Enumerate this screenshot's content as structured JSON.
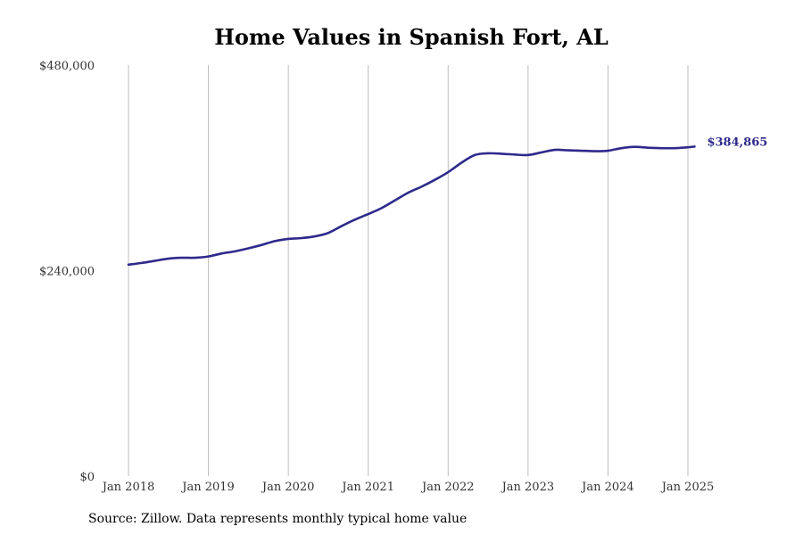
{
  "chart_data": {
    "type": "line",
    "title": "Home Values in Spanish Fort, AL",
    "xlabel": "",
    "ylabel": "",
    "ylim": [
      0,
      480000
    ],
    "xlim": [
      "2018-01",
      "2025-02"
    ],
    "grid": "vertical",
    "y_ticks": [
      {
        "value": 0,
        "label": "$0"
      },
      {
        "value": 240000,
        "label": "$240,000"
      },
      {
        "value": 480000,
        "label": "$480,000"
      }
    ],
    "x_ticks": [
      {
        "value": "2018-01",
        "label": "Jan 2018"
      },
      {
        "value": "2019-01",
        "label": "Jan 2019"
      },
      {
        "value": "2020-01",
        "label": "Jan 2020"
      },
      {
        "value": "2021-01",
        "label": "Jan 2021"
      },
      {
        "value": "2022-01",
        "label": "Jan 2022"
      },
      {
        "value": "2023-01",
        "label": "Jan 2023"
      },
      {
        "value": "2024-01",
        "label": "Jan 2024"
      },
      {
        "value": "2025-01",
        "label": "Jan 2025"
      }
    ],
    "series": [
      {
        "color": "#2e2a8c",
        "points": [
          [
            "2018-01",
            247000
          ],
          [
            "2018-03",
            249000
          ],
          [
            "2018-05",
            251500
          ],
          [
            "2018-07",
            254000
          ],
          [
            "2018-09",
            255000
          ],
          [
            "2018-11",
            255000
          ],
          [
            "2019-01",
            256500
          ],
          [
            "2019-03",
            260000
          ],
          [
            "2019-05",
            262500
          ],
          [
            "2019-07",
            266000
          ],
          [
            "2019-09",
            270000
          ],
          [
            "2019-11",
            274500
          ],
          [
            "2020-01",
            277000
          ],
          [
            "2020-03",
            278000
          ],
          [
            "2020-05",
            280000
          ],
          [
            "2020-07",
            284000
          ],
          [
            "2020-09",
            292000
          ],
          [
            "2020-11",
            299500
          ],
          [
            "2021-01",
            306000
          ],
          [
            "2021-03",
            313000
          ],
          [
            "2021-05",
            322000
          ],
          [
            "2021-07",
            331000
          ],
          [
            "2021-09",
            338000
          ],
          [
            "2021-11",
            346000
          ],
          [
            "2022-01",
            355000
          ],
          [
            "2022-03",
            366000
          ],
          [
            "2022-05",
            375000
          ],
          [
            "2022-07",
            377000
          ],
          [
            "2022-09",
            376500
          ],
          [
            "2022-11",
            375500
          ],
          [
            "2023-01",
            375000
          ],
          [
            "2023-03",
            378000
          ],
          [
            "2023-05",
            381000
          ],
          [
            "2023-07",
            380500
          ],
          [
            "2023-09",
            380000
          ],
          [
            "2023-11",
            379500
          ],
          [
            "2024-01",
            380000
          ],
          [
            "2024-03",
            383000
          ],
          [
            "2024-05",
            384500
          ],
          [
            "2024-07",
            383500
          ],
          [
            "2024-09",
            383000
          ],
          [
            "2024-11",
            383000
          ],
          [
            "2025-01",
            384000
          ],
          [
            "2025-02",
            384865
          ]
        ]
      }
    ],
    "end_label": "$384,865"
  },
  "footer": {
    "source": "Source: Zillow. Data represents monthly typical home value"
  }
}
